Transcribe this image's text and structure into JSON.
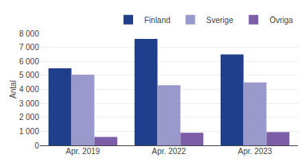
{
  "chart_data": {
    "type": "bar",
    "categories": [
      "Apr. 2019",
      "Apr. 2022",
      "Apr. 2023"
    ],
    "series": [
      {
        "name": "Finland",
        "color": "#1F3F8C",
        "values": [
          5500,
          7600,
          6500
        ]
      },
      {
        "name": "Sverige",
        "color": "#9999CC",
        "values": [
          5050,
          4300,
          4500
        ]
      },
      {
        "name": "Övriga",
        "color": "#7B5EA7",
        "values": [
          600,
          900,
          950
        ]
      }
    ],
    "ylabel": "Antal",
    "ylim": [
      0,
      8000
    ],
    "yticks": [
      0,
      {
        "value": 1000,
        "label": "1 000"
      },
      {
        "value": 2000,
        "label": "2 000"
      },
      {
        "value": 3000,
        "label": "3 000"
      },
      {
        "value": 4000,
        "label": "4 000"
      },
      {
        "value": 5000,
        "label": "5 000"
      },
      {
        "value": 6000,
        "label": "6 000"
      },
      {
        "value": 7000,
        "label": "7 000"
      },
      {
        "value": 8000,
        "label": "8 000"
      }
    ],
    "grid": true,
    "legend": "upper right"
  }
}
